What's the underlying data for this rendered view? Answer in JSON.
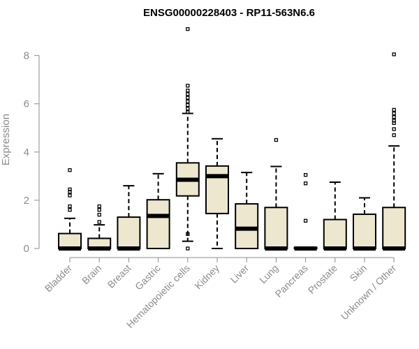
{
  "chart_data": {
    "type": "box",
    "title": "ENSG00000228403 - RP11-563N6.6",
    "ylabel": "Expression",
    "xlabel": "",
    "ylim": [
      0,
      9.3
    ],
    "yticks": [
      0,
      2,
      4,
      6,
      8
    ],
    "grid": false,
    "legend": "none",
    "box_color": "#ede7cf",
    "categories": [
      "Bladder",
      "Brain",
      "Breast",
      "Gastric",
      "Hematopoietic cells",
      "Kidney",
      "Liver",
      "Lung",
      "Pancreas",
      "Prostate",
      "Skin",
      "Unknown / Other"
    ],
    "boxes": [
      {
        "name": "Bladder",
        "whisker_low": 0,
        "q1": 0,
        "median": 0,
        "q3": 0.62,
        "whisker_high": 1.25,
        "outliers": [
          1.6,
          1.75,
          2.2,
          2.35,
          2.45,
          3.25
        ]
      },
      {
        "name": "Brain",
        "whisker_low": 0,
        "q1": 0,
        "median": 0,
        "q3": 0.42,
        "whisker_high": 0.98,
        "outliers": [
          1.1,
          1.4,
          1.6,
          1.75
        ]
      },
      {
        "name": "Breast",
        "whisker_low": 0,
        "q1": 0,
        "median": 0,
        "q3": 1.3,
        "whisker_high": 2.6,
        "outliers": []
      },
      {
        "name": "Gastric",
        "whisker_low": 0,
        "q1": 0,
        "median": 1.35,
        "q3": 2.02,
        "whisker_high": 3.1,
        "outliers": []
      },
      {
        "name": "Hematopoietic cells",
        "whisker_low": 0.3,
        "q1": 2.18,
        "median": 2.85,
        "q3": 3.55,
        "whisker_high": 5.6,
        "outliers": [
          0.0,
          0.6,
          5.65,
          5.8,
          5.95,
          6.1,
          6.25,
          6.4,
          6.55,
          6.75,
          9.1
        ]
      },
      {
        "name": "Kidney",
        "whisker_low": 0,
        "q1": 1.45,
        "median": 3.0,
        "q3": 3.42,
        "whisker_high": 4.55,
        "outliers": []
      },
      {
        "name": "Liver",
        "whisker_low": 0,
        "q1": 0,
        "median": 0.82,
        "q3": 1.85,
        "whisker_high": 3.15,
        "outliers": []
      },
      {
        "name": "Lung",
        "whisker_low": 0,
        "q1": 0,
        "median": 0,
        "q3": 1.7,
        "whisker_high": 3.4,
        "outliers": [
          4.5
        ]
      },
      {
        "name": "Pancreas",
        "whisker_low": 0,
        "q1": 0,
        "median": 0,
        "q3": 0.04,
        "whisker_high": 0.04,
        "outliers": [
          1.15,
          2.7,
          3.05
        ]
      },
      {
        "name": "Prostate",
        "whisker_low": 0,
        "q1": 0,
        "median": 0,
        "q3": 1.2,
        "whisker_high": 2.75,
        "outliers": []
      },
      {
        "name": "Skin",
        "whisker_low": 0,
        "q1": 0,
        "median": 0,
        "q3": 1.42,
        "whisker_high": 2.1,
        "outliers": []
      },
      {
        "name": "Unknown / Other",
        "whisker_low": 0,
        "q1": 0,
        "median": 0,
        "q3": 1.7,
        "whisker_high": 4.25,
        "outliers": [
          4.7,
          4.95,
          5.2,
          5.3,
          5.45,
          5.6,
          5.75,
          8.05
        ]
      }
    ]
  }
}
